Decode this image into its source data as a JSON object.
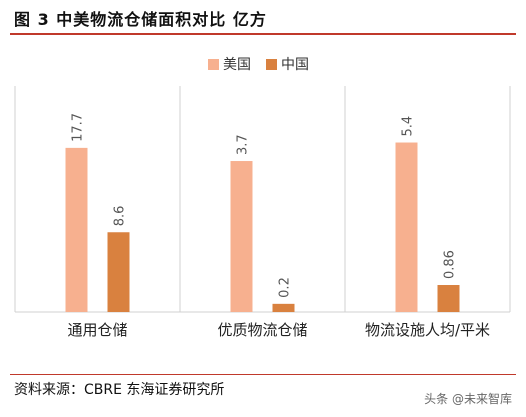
{
  "title": "图 3  中美物流仓储面积对比 亿方",
  "source": "资料来源：CBRE 东海证券研究所",
  "watermark": "头条 @未来智库",
  "colors": {
    "us": "#f7b08f",
    "china": "#d9813f",
    "frame": "#d0d0d0",
    "title_rule": "#c0392b"
  },
  "chart_data": {
    "type": "bar",
    "categories": [
      "通用仓储",
      "优质物流仓储",
      "物流设施人均/平米"
    ],
    "series": [
      {
        "name": "美国",
        "values": [
          17.7,
          3.7,
          5.4
        ],
        "labels": [
          "17.7",
          "3.7",
          "5.4"
        ]
      },
      {
        "name": "中国",
        "values": [
          8.6,
          0.2,
          0.86
        ],
        "labels": [
          "8.6",
          "0.2",
          "0.86"
        ]
      }
    ],
    "panels": [
      {
        "category": "通用仓储",
        "ylim": [
          0,
          22
        ]
      },
      {
        "category": "优质物流仓储",
        "ylim": [
          0,
          5
        ]
      },
      {
        "category": "物流设施人均/平米",
        "ylim": [
          0,
          6.5
        ]
      }
    ],
    "legend": "top-center",
    "grid": false
  }
}
